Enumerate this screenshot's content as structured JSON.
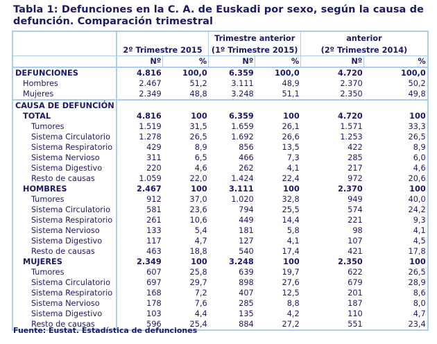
{
  "title": "Tabla 1: Defunciones en la C. A. de Euskadi por sexo, según la causa de defunción. Comparación trimestral",
  "header": {
    "col1": [
      "",
      "2º Trimestre 2015"
    ],
    "col2": [
      "Trimestre anterior",
      "(1º Trimestre 2015)"
    ],
    "col3": [
      "anterior",
      "(2º Trimestre 2014)"
    ],
    "n": "Nº",
    "pct": "%"
  },
  "rows": [
    {
      "label": "DEFUNCIONES",
      "bold": true,
      "indent": 0,
      "sep": true,
      "v": [
        "4.816",
        "100,0",
        "6.359",
        "100,0",
        "4.720",
        "100,0"
      ]
    },
    {
      "label": "Hombres",
      "indent": 1,
      "v": [
        "2.467",
        "51,2",
        "3.111",
        "48,9",
        "2.370",
        "50,2"
      ]
    },
    {
      "label": "Mujeres",
      "indent": 1,
      "v": [
        "2.349",
        "48,8",
        "3.248",
        "51,1",
        "2.350",
        "49,8"
      ]
    },
    {
      "label": "CAUSA DE DEFUNCIÓN",
      "bold": true,
      "indent": 0,
      "sep": true,
      "v": [
        "",
        "",
        "",
        "",
        "",
        ""
      ]
    },
    {
      "label": "TOTAL",
      "bold": true,
      "indent": 1,
      "v": [
        "4.816",
        "100",
        "6.359",
        "100",
        "4.720",
        "100"
      ]
    },
    {
      "label": "Tumores",
      "indent": 2,
      "v": [
        "1.519",
        "31,5",
        "1.659",
        "26,1",
        "1.571",
        "33,3"
      ]
    },
    {
      "label": "Sistema Circulatorio",
      "indent": 2,
      "v": [
        "1.278",
        "26,5",
        "1.692",
        "26,6",
        "1.253",
        "26,5"
      ]
    },
    {
      "label": "Sistema Respiratorio",
      "indent": 2,
      "v": [
        "429",
        "8,9",
        "856",
        "13,5",
        "422",
        "8,9"
      ]
    },
    {
      "label": "Sistema Nervioso",
      "indent": 2,
      "v": [
        "311",
        "6,5",
        "466",
        "7,3",
        "285",
        "6,0"
      ]
    },
    {
      "label": "Sistema Digestivo",
      "indent": 2,
      "v": [
        "220",
        "4,6",
        "262",
        "4,1",
        "217",
        "4,6"
      ]
    },
    {
      "label": "Resto de causas",
      "indent": 2,
      "v": [
        "1.059",
        "22,0",
        "1.424",
        "22,4",
        "972",
        "20,6"
      ]
    },
    {
      "label": "HOMBRES",
      "bold": true,
      "indent": 1,
      "v": [
        "2.467",
        "100",
        "3.111",
        "100",
        "2.370",
        "100"
      ]
    },
    {
      "label": "Tumores",
      "indent": 2,
      "v": [
        "912",
        "37,0",
        "1.020",
        "32,8",
        "949",
        "40,0"
      ]
    },
    {
      "label": "Sistema Circulatorio",
      "indent": 2,
      "v": [
        "581",
        "23,6",
        "794",
        "25,5",
        "574",
        "24,2"
      ]
    },
    {
      "label": "Sistema Respiratorio",
      "indent": 2,
      "v": [
        "261",
        "10,6",
        "449",
        "14,4",
        "221",
        "9,3"
      ]
    },
    {
      "label": "Sistema Nervioso",
      "indent": 2,
      "v": [
        "133",
        "5,4",
        "181",
        "5,8",
        "98",
        "4,1"
      ]
    },
    {
      "label": "Sistema Digestivo",
      "indent": 2,
      "v": [
        "117",
        "4,7",
        "127",
        "4,1",
        "107",
        "4,5"
      ]
    },
    {
      "label": "Resto de causas",
      "indent": 2,
      "v": [
        "463",
        "18,8",
        "540",
        "17,4",
        "421",
        "17,8"
      ]
    },
    {
      "label": "MUJERES",
      "bold": true,
      "indent": 1,
      "v": [
        "2.349",
        "100",
        "3.248",
        "100",
        "2.350",
        "100"
      ]
    },
    {
      "label": "Tumores",
      "indent": 2,
      "v": [
        "607",
        "25,8",
        "639",
        "19,7",
        "622",
        "26,5"
      ]
    },
    {
      "label": "Sistema Circulatorio",
      "indent": 2,
      "v": [
        "697",
        "29,7",
        "898",
        "27,6",
        "679",
        "28,9"
      ]
    },
    {
      "label": "Sistema Respiratorio",
      "indent": 2,
      "v": [
        "168",
        "7,2",
        "407",
        "12,5",
        "201",
        "8,6"
      ]
    },
    {
      "label": "Sistema Nervioso",
      "indent": 2,
      "v": [
        "178",
        "7,6",
        "285",
        "8,8",
        "187",
        "8,0"
      ]
    },
    {
      "label": "Sistema Digestivo",
      "indent": 2,
      "v": [
        "103",
        "4,4",
        "135",
        "4,2",
        "110",
        "4,7"
      ]
    },
    {
      "label": "Resto de causas",
      "indent": 2,
      "v": [
        "596",
        "25,4",
        "884",
        "27,2",
        "551",
        "23,4"
      ]
    }
  ],
  "footer": "Fuente: Eustat. Estadística de defunciones"
}
